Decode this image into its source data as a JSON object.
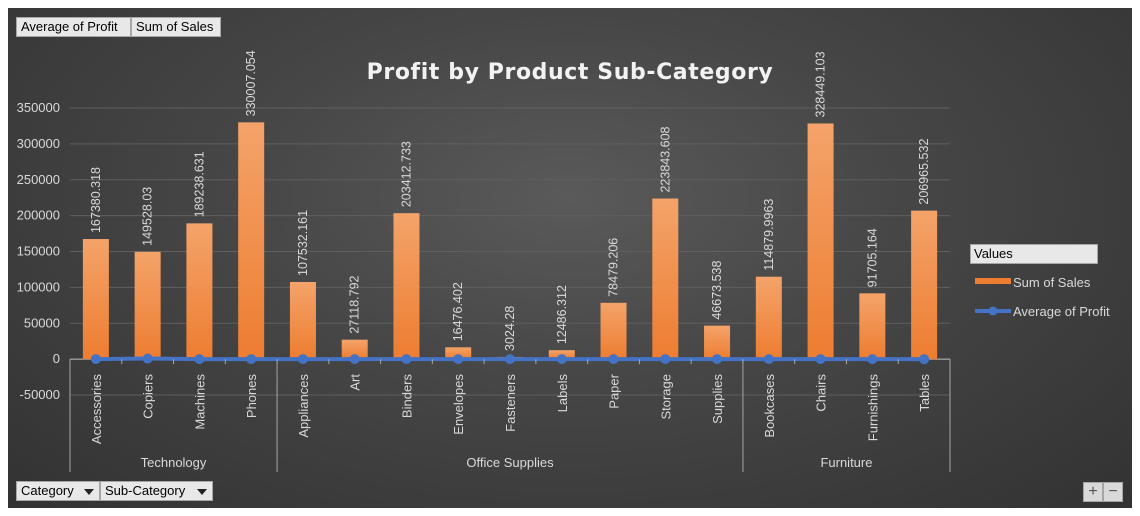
{
  "field_buttons": {
    "average_profit": "Average of Profit",
    "sum_sales": "Sum of Sales",
    "category": "Category",
    "subcategory": "Sub-Category"
  },
  "legend": {
    "title": "Values",
    "items": [
      "Sum of Sales",
      "Average of Profit"
    ]
  },
  "zoom": {
    "plus": "+",
    "minus": "−"
  },
  "colors": {
    "bar": "#ed7d31",
    "line": "#4472c4",
    "background": "#404040",
    "text": "#d9d9d9"
  },
  "chart_data": {
    "type": "bar",
    "title": "Profit by Product Sub-Category",
    "xlabel": "",
    "ylabel": "",
    "ylim": [
      -50000,
      350000
    ],
    "yticks": [
      -50000,
      0,
      50000,
      100000,
      150000,
      200000,
      250000,
      300000,
      350000
    ],
    "grid": true,
    "legend_position": "right",
    "groups": [
      {
        "name": "Technology",
        "categories": [
          "Accessories",
          "Copiers",
          "Machines",
          "Phones"
        ]
      },
      {
        "name": "Office Supplies",
        "categories": [
          "Appliances",
          "Art",
          "Binders",
          "Envelopes",
          "Fasteners",
          "Labels",
          "Paper",
          "Storage",
          "Supplies"
        ]
      },
      {
        "name": "Furniture",
        "categories": [
          "Bookcases",
          "Chairs",
          "Furnishings",
          "Tables"
        ]
      }
    ],
    "categories": [
      "Accessories",
      "Copiers",
      "Machines",
      "Phones",
      "Appliances",
      "Art",
      "Binders",
      "Envelopes",
      "Fasteners",
      "Labels",
      "Paper",
      "Storage",
      "Supplies",
      "Bookcases",
      "Chairs",
      "Furnishings",
      "Tables"
    ],
    "series": [
      {
        "name": "Sum of Sales",
        "kind": "bar",
        "values": [
          167380.318,
          149528.03,
          189238.631,
          330007.054,
          107532.161,
          27118.792,
          203412.733,
          16476.402,
          3024.28,
          12486.312,
          78479.206,
          223843.608,
          46673.538,
          114879.9963,
          328449.103,
          91705.164,
          206965.532
        ],
        "labels": [
          "167380.318",
          "149528.03",
          "189238.631",
          "330007.054",
          "107532.161",
          "27118.792",
          "203412.733",
          "16476.402",
          "3024.28",
          "12486.312",
          "78479.206",
          "223843.608",
          "46673.538",
          "114879.9963",
          "328449.103",
          "91705.164",
          "206965.532"
        ]
      },
      {
        "name": "Average of Profit",
        "kind": "line",
        "values": [
          54.1,
          817.9,
          -1.3,
          50.1,
          38.9,
          8.2,
          19.8,
          27.4,
          4.4,
          15.2,
          24.9,
          25.2,
          -6.3,
          -15.2,
          43.1,
          13.6,
          -55.2
        ]
      }
    ]
  }
}
